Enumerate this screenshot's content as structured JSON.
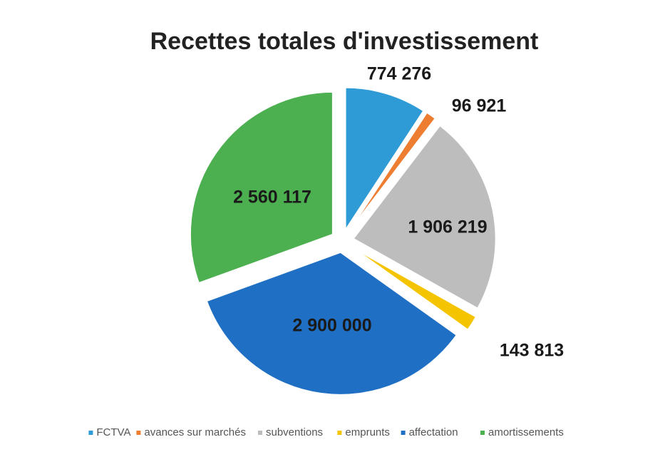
{
  "chart_data": {
    "type": "pie",
    "title": "Recettes totales d'investissement",
    "categories": [
      "FCTVA",
      "avances sur marchés",
      "subventions",
      "emprunts",
      "affectation",
      "amortissements"
    ],
    "values": [
      774276,
      96921,
      1906219,
      143813,
      2900000,
      2560117
    ],
    "value_labels": [
      "774 276",
      "96 921",
      "1 906 219",
      "143 813",
      "2 900 000",
      "2 560 117"
    ],
    "colors": [
      "#2e9bd6",
      "#ed7d31",
      "#bdbdbd",
      "#f5c400",
      "#1f6fc4",
      "#4caf50"
    ],
    "legend": "bottom"
  }
}
